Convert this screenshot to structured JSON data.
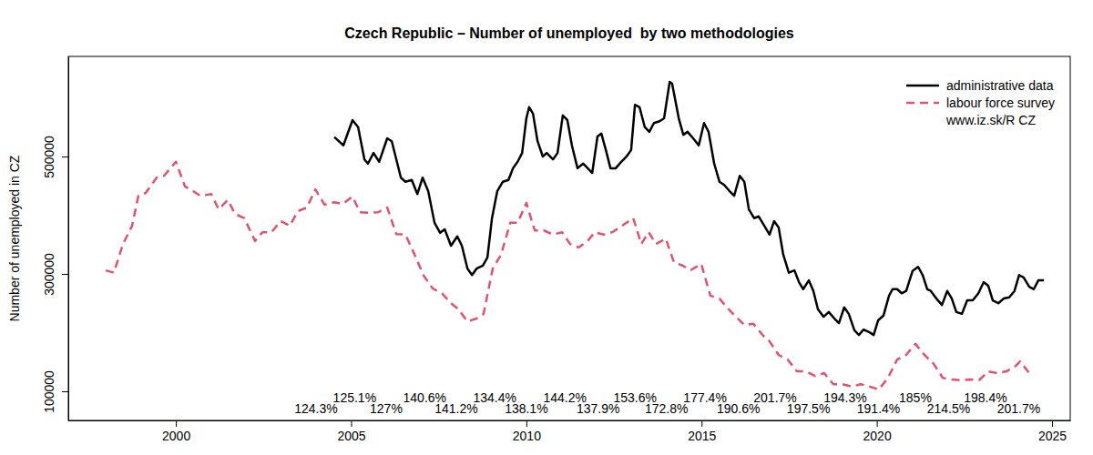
{
  "chart_data": {
    "type": "line",
    "title": "Czech Republic – Number of unemployed  by two methodologies",
    "y_label": "Number of unemployed in CZ",
    "source": "www.iz.sk/R CZ",
    "legend": "top-right",
    "xlim": [
      1996.93,
      2025.52
    ],
    "xticks": [
      2000,
      2005,
      2010,
      2015,
      2020,
      2025
    ],
    "ylim": [
      50400,
      670500
    ],
    "yticks": [
      100000,
      300000,
      500000
    ],
    "series": [
      {
        "name": "administrative data",
        "color": "#000000",
        "line_style": "solid",
        "x": [
          2004.52,
          2004.78,
          2005.04,
          2005.2,
          2005.38,
          2005.48,
          2005.64,
          2005.8,
          2006.03,
          2006.16,
          2006.42,
          2006.55,
          2006.73,
          2006.89,
          2007.04,
          2007.2,
          2007.38,
          2007.54,
          2007.67,
          2007.85,
          2008.03,
          2008.16,
          2008.32,
          2008.45,
          2008.58,
          2008.76,
          2008.89,
          2009.02,
          2009.17,
          2009.33,
          2009.49,
          2009.62,
          2009.75,
          2009.88,
          2010.0,
          2010.08,
          2010.19,
          2010.32,
          2010.47,
          2010.58,
          2010.76,
          2010.89,
          2011.04,
          2011.17,
          2011.3,
          2011.46,
          2011.62,
          2011.75,
          2011.88,
          2012.03,
          2012.14,
          2012.27,
          2012.4,
          2012.55,
          2012.71,
          2012.86,
          2012.99,
          2013.1,
          2013.23,
          2013.38,
          2013.51,
          2013.64,
          2013.8,
          2013.93,
          2014.09,
          2014.16,
          2014.35,
          2014.48,
          2014.6,
          2014.76,
          2014.92,
          2015.07,
          2015.2,
          2015.36,
          2015.51,
          2015.64,
          2015.8,
          2015.93,
          2016.09,
          2016.22,
          2016.35,
          2016.5,
          2016.63,
          2016.79,
          2016.94,
          2017.07,
          2017.2,
          2017.33,
          2017.49,
          2017.65,
          2017.78,
          2017.9,
          2018.06,
          2018.19,
          2018.32,
          2018.48,
          2018.63,
          2018.79,
          2018.92,
          2019.07,
          2019.2,
          2019.36,
          2019.49,
          2019.62,
          2019.78,
          2019.91,
          2020.04,
          2020.19,
          2020.35,
          2020.45,
          2020.58,
          2020.71,
          2020.84,
          2021.02,
          2021.18,
          2021.31,
          2021.44,
          2021.54,
          2021.7,
          2021.86,
          2022.01,
          2022.14,
          2022.27,
          2022.43,
          2022.58,
          2022.74,
          2022.9,
          2023.05,
          2023.18,
          2023.31,
          2023.47,
          2023.62,
          2023.78,
          2023.93,
          2024.06,
          2024.19,
          2024.35,
          2024.48,
          2024.61,
          2024.77
        ],
        "values": [
          533000,
          519000,
          562000,
          550000,
          495000,
          488000,
          506000,
          491000,
          531000,
          526000,
          464000,
          457000,
          460000,
          436000,
          464000,
          441000,
          387000,
          370000,
          376000,
          348000,
          364000,
          348000,
          309000,
          298000,
          309000,
          314000,
          328000,
          395000,
          441000,
          457000,
          460000,
          480000,
          491000,
          506000,
          565000,
          584000,
          573000,
          526000,
          500000,
          506000,
          495000,
          506000,
          570000,
          562000,
          519000,
          480000,
          488000,
          480000,
          472000,
          534000,
          539000,
          511000,
          480000,
          480000,
          491000,
          500000,
          511000,
          588000,
          584000,
          550000,
          542000,
          557000,
          560000,
          565000,
          627000,
          624000,
          565000,
          537000,
          542000,
          531000,
          519000,
          557000,
          542000,
          488000,
          457000,
          452000,
          441000,
          433000,
          467000,
          457000,
          410000,
          395000,
          398000,
          382000,
          367000,
          390000,
          379000,
          333000,
          302000,
          306000,
          286000,
          274000,
          289000,
          271000,
          240000,
          227000,
          235000,
          224000,
          216000,
          243000,
          232000,
          204000,
          196000,
          205000,
          201000,
          196000,
          221000,
          229000,
          263000,
          274000,
          274000,
          267000,
          271000,
          305000,
          312000,
          298000,
          274000,
          271000,
          258000,
          247000,
          271000,
          258000,
          235000,
          232000,
          255000,
          255000,
          267000,
          286000,
          280000,
          255000,
          250000,
          258000,
          260000,
          271000,
          298000,
          294000,
          278000,
          274000,
          289000,
          289000
        ]
      },
      {
        "name": "labour force survey",
        "color": "#df536b",
        "line_style": "dashed",
        "x": [
          1998.0,
          1998.23,
          1998.49,
          1998.75,
          1998.93,
          1999.14,
          1999.45,
          1999.66,
          2000.0,
          2000.26,
          2000.49,
          2000.7,
          2001.01,
          2001.22,
          2001.48,
          2001.69,
          2001.95,
          2002.26,
          2002.47,
          2002.73,
          2002.99,
          2003.25,
          2003.48,
          2003.74,
          2003.98,
          2004.24,
          2004.52,
          2004.76,
          2005.04,
          2005.25,
          2005.51,
          2005.77,
          2006.03,
          2006.29,
          2006.55,
          2006.81,
          2007.07,
          2007.33,
          2007.59,
          2007.85,
          2008.06,
          2008.32,
          2008.58,
          2008.78,
          2009.04,
          2009.28,
          2009.54,
          2009.75,
          2010.0,
          2010.24,
          2010.5,
          2010.76,
          2011.02,
          2011.25,
          2011.49,
          2011.75,
          2011.95,
          2012.21,
          2012.45,
          2012.73,
          2013.05,
          2013.28,
          2013.49,
          2013.7,
          2013.98,
          2014.21,
          2014.47,
          2014.68,
          2014.99,
          2015.25,
          2015.51,
          2015.72,
          2015.98,
          2016.22,
          2016.48,
          2016.74,
          2016.94,
          2017.2,
          2017.46,
          2017.72,
          2017.98,
          2018.24,
          2018.5,
          2018.76,
          2019.02,
          2019.28,
          2019.54,
          2019.8,
          2020.06,
          2020.32,
          2020.58,
          2020.84,
          2021.1,
          2021.36,
          2021.62,
          2021.88,
          2022.14,
          2022.4,
          2022.66,
          2022.92,
          2023.18,
          2023.44,
          2023.7,
          2023.96,
          2024.09,
          2024.35
        ],
        "values": [
          306000,
          302000,
          351000,
          382000,
          433000,
          438000,
          464000,
          467000,
          491000,
          449000,
          441000,
          433000,
          436000,
          410000,
          426000,
          402000,
          395000,
          356000,
          371000,
          371000,
          390000,
          382000,
          407000,
          413000,
          444000,
          418000,
          422000,
          419000,
          432000,
          405000,
          404000,
          405000,
          413000,
          368000,
          367000,
          333000,
          297000,
          275000,
          267000,
          250000,
          240000,
          219000,
          224000,
          232000,
          309000,
          333000,
          387000,
          387000,
          421000,
          374000,
          374000,
          367000,
          371000,
          351000,
          345000,
          356000,
          371000,
          367000,
          371000,
          382000,
          395000,
          351000,
          371000,
          351000,
          360000,
          320000,
          314000,
          306000,
          317000,
          263000,
          258000,
          243000,
          227000,
          213000,
          215000,
          196000,
          185000,
          162000,
          154000,
          134000,
          134000,
          126000,
          131000,
          112000,
          112000,
          108000,
          112000,
          108000,
          103000,
          123000,
          154000,
          162000,
          181000,
          162000,
          147000,
          123000,
          120000,
          119000,
          120000,
          119000,
          134000,
          131000,
          134000,
          143000,
          151000,
          131000
        ]
      }
    ],
    "annotations": [
      {
        "text": "124.3%",
        "x": 2004.0,
        "y": 70500
      },
      {
        "text": "125.1%",
        "x": 2005.1,
        "y": 89000
      },
      {
        "text": "127%",
        "x": 2006.0,
        "y": 70500
      },
      {
        "text": "140.6%",
        "x": 2007.1,
        "y": 89000
      },
      {
        "text": "141.2%",
        "x": 2008.0,
        "y": 70500
      },
      {
        "text": "134.4%",
        "x": 2009.1,
        "y": 89000
      },
      {
        "text": "138.1%",
        "x": 2010.0,
        "y": 70500
      },
      {
        "text": "144.2%",
        "x": 2011.1,
        "y": 89000
      },
      {
        "text": "137.9%",
        "x": 2012.05,
        "y": 70500
      },
      {
        "text": "153.6%",
        "x": 2013.1,
        "y": 89000
      },
      {
        "text": "172.8%",
        "x": 2014.0,
        "y": 70500
      },
      {
        "text": "177.4%",
        "x": 2015.1,
        "y": 89000
      },
      {
        "text": "190.6%",
        "x": 2016.05,
        "y": 70500
      },
      {
        "text": "201.7%",
        "x": 2017.1,
        "y": 89000
      },
      {
        "text": "197.5%",
        "x": 2018.05,
        "y": 70500
      },
      {
        "text": "194.3%",
        "x": 2019.1,
        "y": 89000
      },
      {
        "text": "191.4%",
        "x": 2020.05,
        "y": 70500
      },
      {
        "text": "185%",
        "x": 2021.1,
        "y": 89000
      },
      {
        "text": "214.5%",
        "x": 2022.05,
        "y": 70500
      },
      {
        "text": "198.4%",
        "x": 2023.1,
        "y": 89000
      },
      {
        "text": "201.7%",
        "x": 2024.05,
        "y": 70500
      }
    ]
  }
}
